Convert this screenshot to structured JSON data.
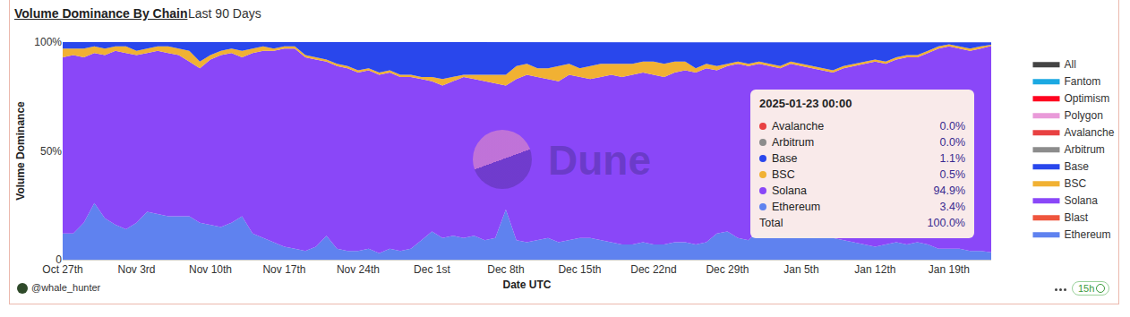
{
  "chart_data": {
    "type": "area",
    "stacked": true,
    "title": "Volume Dominance By Chain",
    "subtitle": "Last 90 Days",
    "x_label": "Date UTC",
    "y_label": "Volume Dominance",
    "categories": [
      "Oct 27th",
      null,
      null,
      null,
      null,
      null,
      null,
      "Nov 3rd",
      null,
      null,
      null,
      null,
      null,
      null,
      "Nov 10th",
      null,
      null,
      null,
      null,
      null,
      null,
      "Nov 17th",
      null,
      null,
      null,
      null,
      null,
      null,
      "Nov 24th",
      null,
      null,
      null,
      null,
      null,
      null,
      "Dec 1st",
      null,
      null,
      null,
      null,
      null,
      null,
      "Dec 8th",
      null,
      null,
      null,
      null,
      null,
      null,
      "Dec 15th",
      null,
      null,
      null,
      null,
      null,
      null,
      "Dec 22nd",
      null,
      null,
      null,
      null,
      null,
      null,
      "Dec 29th",
      null,
      null,
      null,
      null,
      null,
      null,
      "Jan 5th",
      null,
      null,
      null,
      null,
      null,
      null,
      "Jan 12th",
      null,
      null,
      null,
      null,
      null,
      null,
      "Jan 19th",
      null,
      null,
      null,
      null
    ],
    "series": [
      {
        "name": "Ethereum",
        "color": "#5f82ef",
        "values": [
          12,
          12,
          17,
          26,
          19,
          16,
          14,
          17,
          22,
          21,
          20,
          20,
          20,
          17,
          16,
          15,
          17,
          20,
          12,
          10,
          8,
          6,
          5,
          4,
          6,
          11,
          5,
          4,
          4,
          5,
          3,
          5,
          4,
          5,
          9,
          13,
          10,
          11,
          10,
          11,
          9,
          10,
          23,
          9,
          8,
          9,
          10,
          8,
          9,
          10,
          10,
          9,
          8,
          7,
          7,
          8,
          7,
          7,
          8,
          8,
          7,
          8,
          12,
          13,
          10,
          9,
          14,
          13,
          12,
          12,
          11,
          11,
          10,
          10,
          9,
          8,
          7,
          6,
          7,
          8,
          7,
          8,
          7,
          5,
          5,
          5,
          4,
          4,
          3.4
        ]
      },
      {
        "name": "Blast",
        "color": "#ef553d",
        "values": [
          0,
          0,
          0,
          0,
          0,
          0,
          0,
          0,
          0,
          0,
          0,
          0,
          0,
          0,
          0,
          0,
          0,
          0,
          0,
          0,
          0,
          0,
          0,
          0,
          0,
          0,
          0,
          0,
          0,
          0,
          0,
          0,
          0,
          0,
          0,
          0,
          0,
          0,
          0,
          0,
          0,
          0,
          0,
          0,
          0,
          0,
          0,
          0,
          0,
          0,
          0,
          0,
          0,
          0,
          0,
          0,
          0,
          0,
          0,
          0,
          0,
          0,
          0,
          0,
          0,
          0,
          0,
          0,
          0,
          0,
          0,
          0,
          0,
          0,
          0,
          0,
          0,
          0,
          0,
          0,
          0,
          0,
          0,
          0,
          0,
          0,
          0,
          0,
          0
        ]
      },
      {
        "name": "Solana",
        "color": "#8a47f8",
        "values": [
          81,
          82,
          76,
          69,
          75,
          80,
          81,
          77,
          73,
          75,
          75,
          74,
          71,
          71,
          76,
          79,
          78,
          73,
          83,
          86,
          88,
          91,
          92,
          89,
          86,
          80,
          84,
          84,
          82,
          82,
          82,
          81,
          80,
          79,
          74,
          69,
          70,
          71,
          74,
          72,
          73,
          71,
          57,
          74,
          77,
          75,
          73,
          74,
          76,
          74,
          73,
          75,
          77,
          77,
          78,
          78,
          78,
          77,
          78,
          79,
          79,
          80,
          75,
          76,
          80,
          80,
          76,
          76,
          76,
          78,
          78,
          77,
          77,
          76,
          79,
          81,
          83,
          85,
          83,
          84,
          86,
          85,
          88,
          92,
          93,
          92,
          92,
          93,
          94.9
        ]
      },
      {
        "name": "BSC",
        "color": "#f1b133",
        "values": [
          4,
          3,
          4,
          3,
          3,
          2,
          3,
          2,
          2,
          2,
          3,
          3,
          5,
          3,
          2,
          2,
          2,
          3,
          2,
          2,
          1,
          1,
          1,
          1,
          1,
          1,
          1,
          1,
          1,
          1,
          1,
          1,
          1,
          1,
          1,
          2,
          3,
          2,
          1,
          2,
          3,
          4,
          5,
          6,
          5,
          4,
          5,
          7,
          5,
          4,
          6,
          6,
          5,
          6,
          5,
          5,
          6,
          6,
          5,
          4,
          2,
          2,
          2,
          1,
          1,
          1,
          1,
          1,
          1,
          1,
          1,
          1,
          1,
          1,
          1,
          1,
          1,
          1,
          1,
          1,
          1,
          1,
          1,
          1,
          1,
          1,
          1,
          1,
          0.5
        ]
      },
      {
        "name": "Base",
        "color": "#2947ec",
        "values": [
          3,
          3,
          3,
          2,
          3,
          2,
          2,
          4,
          3,
          2,
          2,
          3,
          4,
          9,
          6,
          4,
          3,
          4,
          3,
          2,
          3,
          2,
          2,
          6,
          7,
          8,
          10,
          11,
          13,
          12,
          14,
          13,
          15,
          15,
          16,
          16,
          17,
          16,
          15,
          15,
          15,
          15,
          15,
          11,
          10,
          12,
          12,
          11,
          10,
          12,
          11,
          10,
          10,
          10,
          10,
          9,
          9,
          10,
          9,
          9,
          12,
          10,
          11,
          10,
          9,
          10,
          9,
          10,
          11,
          9,
          10,
          11,
          12,
          13,
          11,
          10,
          9,
          8,
          9,
          7,
          6,
          6,
          4,
          2,
          1,
          2,
          3,
          2,
          1.1
        ]
      },
      {
        "name": "Arbitrum",
        "color": "#8c8c8c",
        "values": [
          0,
          0,
          0,
          0,
          0,
          0,
          0,
          0,
          0,
          0,
          0,
          0,
          0,
          0,
          0,
          0,
          0,
          0,
          0,
          0,
          0,
          0,
          0,
          0,
          0,
          0,
          0,
          0,
          0,
          0,
          0,
          0,
          0,
          0,
          0,
          0,
          0,
          0,
          0,
          0,
          0,
          0,
          0,
          0,
          0,
          0,
          0,
          0,
          0,
          0,
          0,
          0,
          0,
          0,
          0,
          0,
          0,
          0,
          0,
          0,
          0,
          0,
          0,
          0,
          0,
          0,
          0,
          0,
          0,
          0,
          0,
          0,
          0,
          0,
          0,
          0,
          0,
          0,
          0,
          0,
          0,
          0,
          0,
          0,
          0,
          0,
          0,
          0,
          0
        ]
      },
      {
        "name": "Avalanche",
        "color": "#e84142",
        "values": [
          0,
          0,
          0,
          0,
          0,
          0,
          0,
          0,
          0,
          0,
          0,
          0,
          0,
          0,
          0,
          0,
          0,
          0,
          0,
          0,
          0,
          0,
          0,
          0,
          0,
          0,
          0,
          0,
          0,
          0,
          0,
          0,
          0,
          0,
          0,
          0,
          0,
          0,
          0,
          0,
          0,
          0,
          0,
          0,
          0,
          0,
          0,
          0,
          0,
          0,
          0,
          0,
          0,
          0,
          0,
          0,
          0,
          0,
          0,
          0,
          0,
          0,
          0,
          0,
          0,
          0,
          0,
          0,
          0,
          0,
          0,
          0,
          0,
          0,
          0,
          0,
          0,
          0,
          0,
          0,
          0,
          0,
          0,
          0,
          0,
          0,
          0,
          0,
          0
        ]
      },
      {
        "name": "Polygon",
        "color": "#e99ad9",
        "values": [
          0,
          0,
          0,
          0,
          0,
          0,
          0,
          0,
          0,
          0,
          0,
          0,
          0,
          0,
          0,
          0,
          0,
          0,
          0,
          0,
          0,
          0,
          0,
          0,
          0,
          0,
          0,
          0,
          0,
          0,
          0,
          0,
          0,
          0,
          0,
          0,
          0,
          0,
          0,
          0,
          0,
          0,
          0,
          0,
          0,
          0,
          0,
          0,
          0,
          0,
          0,
          0,
          0,
          0,
          0,
          0,
          0,
          0,
          0,
          0,
          0,
          0,
          0,
          0,
          0,
          0,
          0,
          0,
          0,
          0,
          0,
          0,
          0,
          0,
          0,
          0,
          0,
          0,
          0,
          0,
          0,
          0,
          0,
          0,
          0,
          0,
          0,
          0,
          0
        ]
      },
      {
        "name": "Optimism",
        "color": "#ff0420",
        "values": [
          0,
          0,
          0,
          0,
          0,
          0,
          0,
          0,
          0,
          0,
          0,
          0,
          0,
          0,
          0,
          0,
          0,
          0,
          0,
          0,
          0,
          0,
          0,
          0,
          0,
          0,
          0,
          0,
          0,
          0,
          0,
          0,
          0,
          0,
          0,
          0,
          0,
          0,
          0,
          0,
          0,
          0,
          0,
          0,
          0,
          0,
          0,
          0,
          0,
          0,
          0,
          0,
          0,
          0,
          0,
          0,
          0,
          0,
          0,
          0,
          0,
          0,
          0,
          0,
          0,
          0,
          0,
          0,
          0,
          0,
          0,
          0,
          0,
          0,
          0,
          0,
          0,
          0,
          0,
          0,
          0,
          0,
          0,
          0,
          0,
          0,
          0,
          0,
          0
        ]
      },
      {
        "name": "Fantom",
        "color": "#1ba9e2",
        "values": [
          0,
          0,
          0,
          0,
          0,
          0,
          0,
          0,
          0,
          0,
          0,
          0,
          0,
          0,
          0,
          0,
          0,
          0,
          0,
          0,
          0,
          0,
          0,
          0,
          0,
          0,
          0,
          0,
          0,
          0,
          0,
          0,
          0,
          0,
          0,
          0,
          0,
          0,
          0,
          0,
          0,
          0,
          0,
          0,
          0,
          0,
          0,
          0,
          0,
          0,
          0,
          0,
          0,
          0,
          0,
          0,
          0,
          0,
          0,
          0,
          0,
          0,
          0,
          0,
          0,
          0,
          0,
          0,
          0,
          0,
          0,
          0,
          0,
          0,
          0,
          0,
          0,
          0,
          0,
          0,
          0,
          0,
          0,
          0,
          0,
          0,
          0,
          0,
          0
        ]
      },
      {
        "name": "All",
        "color": "#444444",
        "values": [
          0,
          0,
          0,
          0,
          0,
          0,
          0,
          0,
          0,
          0,
          0,
          0,
          0,
          0,
          0,
          0,
          0,
          0,
          0,
          0,
          0,
          0,
          0,
          0,
          0,
          0,
          0,
          0,
          0,
          0,
          0,
          0,
          0,
          0,
          0,
          0,
          0,
          0,
          0,
          0,
          0,
          0,
          0,
          0,
          0,
          0,
          0,
          0,
          0,
          0,
          0,
          0,
          0,
          0,
          0,
          0,
          0,
          0,
          0,
          0,
          0,
          0,
          0,
          0,
          0,
          0,
          0,
          0,
          0,
          0,
          0,
          0,
          0,
          0,
          0,
          0,
          0,
          0,
          0,
          0,
          0,
          0,
          0,
          0,
          0,
          0,
          0,
          0,
          0
        ]
      }
    ],
    "ylim": [
      0,
      100
    ],
    "yticks": [
      0,
      {
        "value": 50,
        "label": "50%"
      },
      {
        "value": 100,
        "label": "100%"
      }
    ],
    "grid": false,
    "legend": "right",
    "watermark": "Dune",
    "author": "@whale_hunter",
    "age": "15h",
    "tooltip": {
      "title": "2025-01-23 00:00",
      "rows": [
        {
          "name": "Avalanche",
          "value": "0.0%"
        },
        {
          "name": "Arbitrum",
          "value": "0.0%"
        },
        {
          "name": "Base",
          "value": "1.1%"
        },
        {
          "name": "BSC",
          "value": "0.5%"
        },
        {
          "name": "Solana",
          "value": "94.9%"
        },
        {
          "name": "Ethereum",
          "value": "3.4%"
        }
      ],
      "total": {
        "name": "Total",
        "value": "100.0%"
      }
    }
  }
}
